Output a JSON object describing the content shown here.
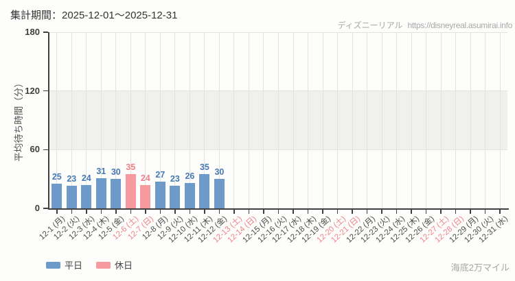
{
  "header": {
    "title": "集計期間：2025-12-01～2025-12-31",
    "site_name": "ディズニーリアル",
    "site_url": "https://disneyreal.asumirai.info"
  },
  "legend": {
    "weekday_label": "平日",
    "holiday_label": "休日"
  },
  "footer": {
    "attraction_name": "海底2万マイル"
  },
  "colors": {
    "weekday_bar": "#6d9ac8",
    "weekday_value_label": "#4678b2",
    "holiday_bar": "#f69aa0",
    "holiday_value_label": "#f0808a",
    "weekday_tick_label": "#4a4a4a",
    "holiday_tick_label": "#f0808a",
    "axis": "#404040",
    "grid": "#e2e2e0",
    "band": "#f0f0ed",
    "muted_text": "#a7a7a7"
  },
  "chart_data": {
    "type": "bar",
    "title": "集計期間：2025-12-01～2025-12-31",
    "xlabel": "",
    "ylabel": "平均待ち時間（分）",
    "ylim": [
      0,
      180
    ],
    "yticks": [
      0,
      60,
      120,
      180
    ],
    "shaded_band": [
      60,
      120
    ],
    "grid": true,
    "legend_position": "bottom",
    "legend_entries": [
      "平日",
      "休日"
    ],
    "categories": [
      "12-1 (月)",
      "12-2 (火)",
      "12-3 (水)",
      "12-4 (木)",
      "12-5 (金)",
      "12-6 (土)",
      "12-7 (日)",
      "12-8 (月)",
      "12-9 (火)",
      "12-10 (水)",
      "12-11 (木)",
      "12-12 (金)",
      "12-13 (土)",
      "12-14 (日)",
      "12-15 (月)",
      "12-16 (火)",
      "12-17 (水)",
      "12-18 (木)",
      "12-19 (金)",
      "12-20 (土)",
      "12-21 (日)",
      "12-22 (月)",
      "12-23 (火)",
      "12-24 (水)",
      "12-25 (木)",
      "12-26 (金)",
      "12-27 (土)",
      "12-28 (日)",
      "12-29 (月)",
      "12-30 (火)",
      "12-31 (水)"
    ],
    "holiday_flags": [
      false,
      false,
      false,
      false,
      false,
      true,
      true,
      false,
      false,
      false,
      false,
      false,
      true,
      true,
      false,
      false,
      false,
      false,
      false,
      true,
      true,
      false,
      false,
      false,
      false,
      false,
      true,
      true,
      false,
      false,
      false
    ],
    "values": [
      25,
      23,
      24,
      31,
      30,
      35,
      24,
      27,
      23,
      26,
      35,
      30,
      null,
      null,
      null,
      null,
      null,
      null,
      null,
      null,
      null,
      null,
      null,
      null,
      null,
      null,
      null,
      null,
      null,
      null,
      null
    ]
  }
}
